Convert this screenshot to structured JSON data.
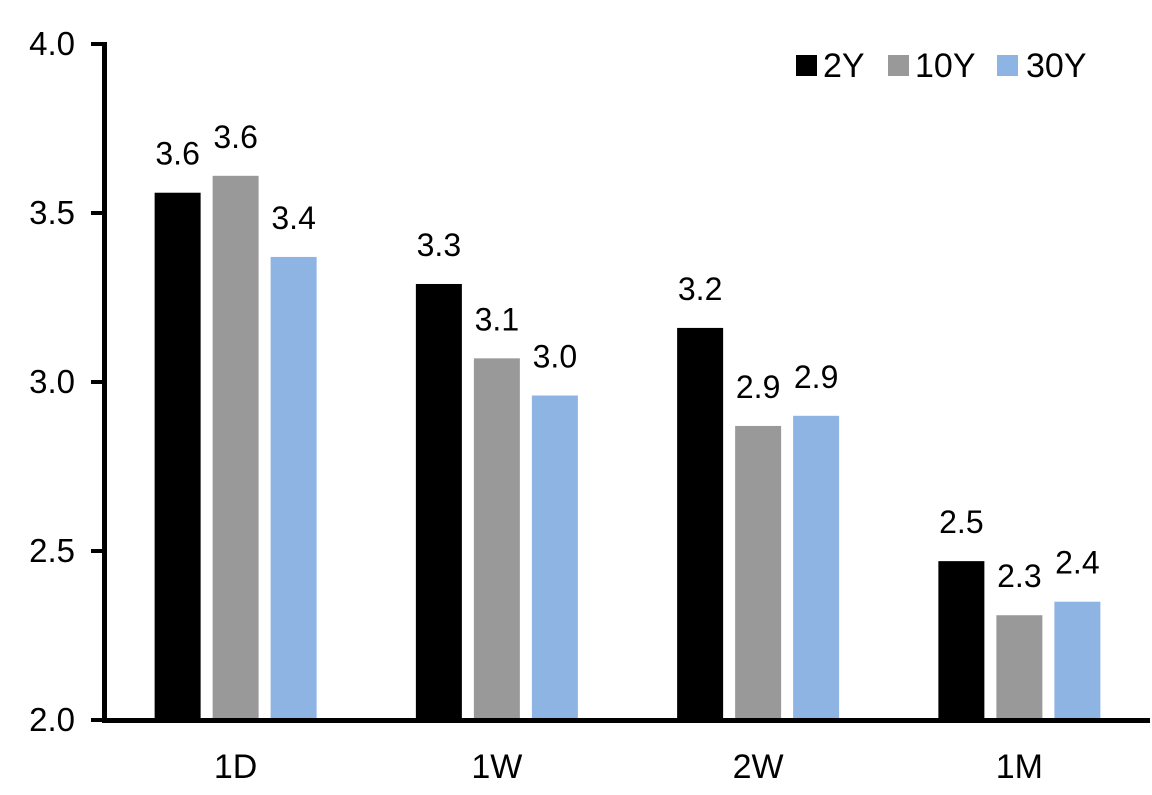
{
  "chart_data": {
    "type": "bar",
    "title": "",
    "xlabel": "",
    "ylabel": "",
    "categories": [
      "1D",
      "1W",
      "2W",
      "1M"
    ],
    "series": [
      {
        "name": "2Y",
        "color": "#000000",
        "values": [
          3.56,
          3.29,
          3.16,
          2.47
        ],
        "labels": [
          "3.6",
          "3.3",
          "3.2",
          "2.5"
        ]
      },
      {
        "name": "10Y",
        "color": "#999999",
        "values": [
          3.61,
          3.07,
          2.87,
          2.31
        ],
        "labels": [
          "3.6",
          "3.1",
          "2.9",
          "2.3"
        ]
      },
      {
        "name": "30Y",
        "color": "#8DB4E2",
        "values": [
          3.37,
          2.96,
          2.9,
          2.35
        ],
        "labels": [
          "3.4",
          "3.0",
          "2.9",
          "2.4"
        ]
      }
    ],
    "ylim": [
      2.0,
      4.0
    ],
    "y_tick_values": [
      2.0,
      2.5,
      3.0,
      3.5,
      4.0
    ],
    "y_tick_labels": [
      "2.0",
      "2.5",
      "3.0",
      "3.5",
      "4.0"
    ],
    "grid": false,
    "legend_position": "top-right",
    "axis_color": "#000000",
    "text_color": "#000000",
    "background": "#FFFFFF"
  }
}
